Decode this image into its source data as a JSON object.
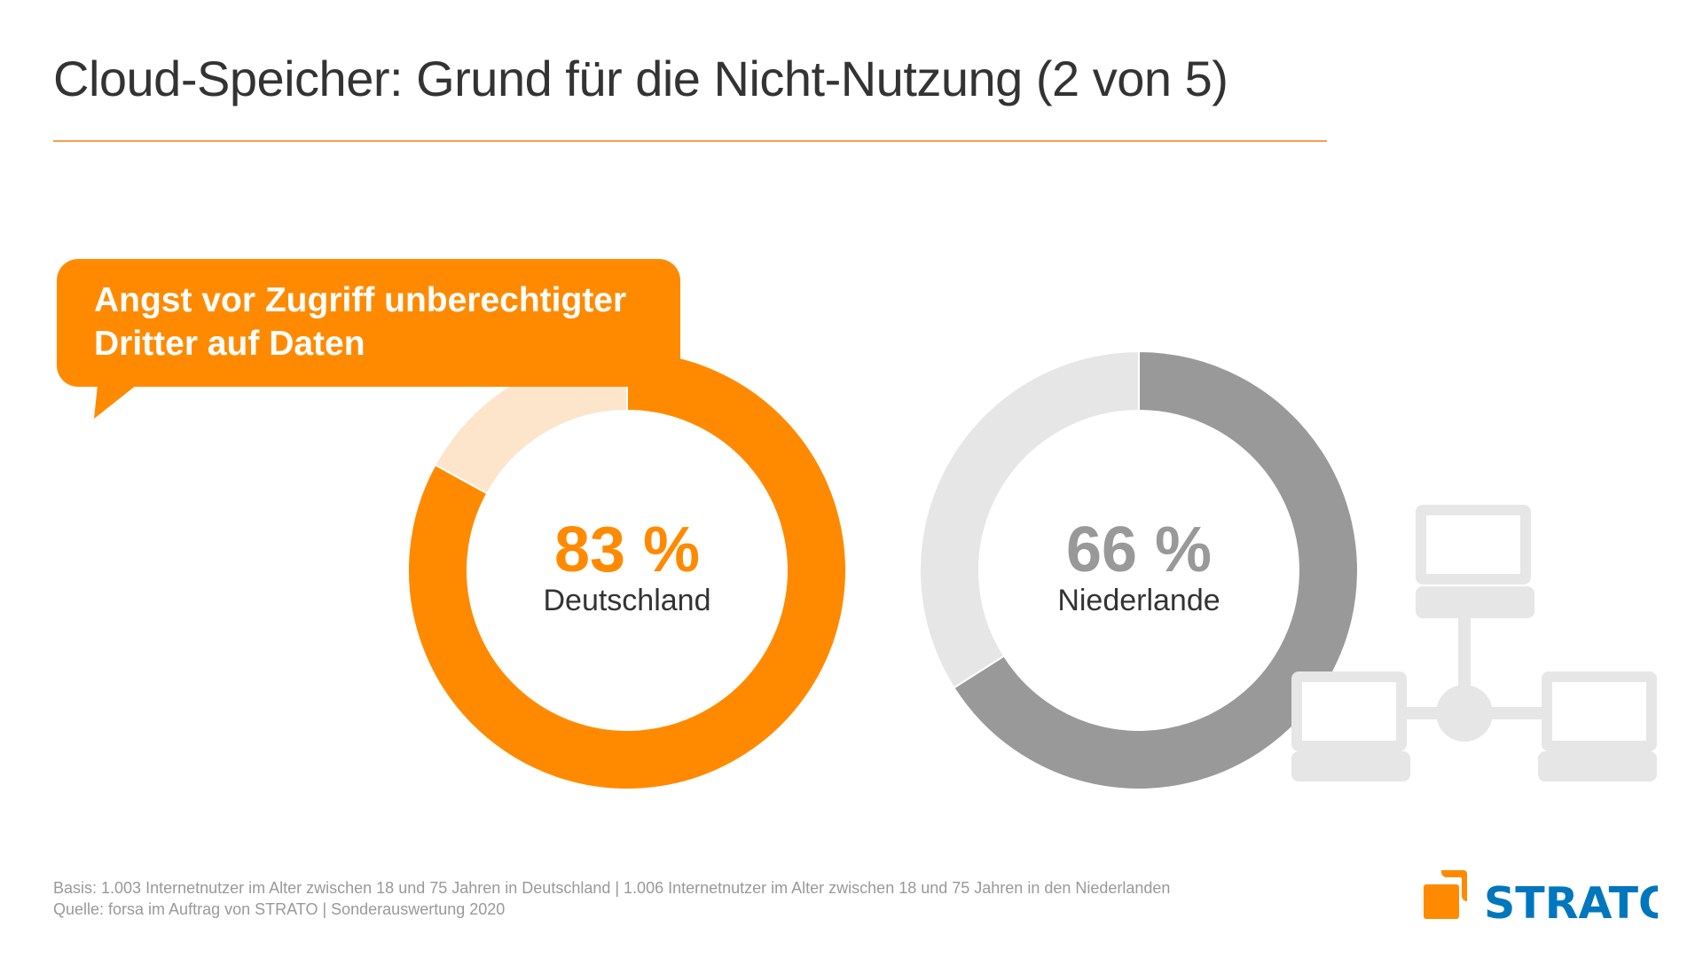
{
  "header": {
    "title": "Cloud-Speicher: Grund für die Nicht-Nutzung (2 von 5)"
  },
  "callout": {
    "text_line1": "Angst vor Zugriff unberechtigter",
    "text_line2": "Dritter auf Daten"
  },
  "colors": {
    "accent": "#ff8a00",
    "accent_light": "#fde5cc",
    "gray": "#999999",
    "gray_light": "#e6e6e6",
    "brand_blue": "#0077bd",
    "network_icon": "#e6e6e6"
  },
  "chart_data": [
    {
      "type": "pie",
      "variant": "donut",
      "name": "Deutschland",
      "label": "83 %",
      "values": [
        83,
        17
      ],
      "colors": [
        "#ff8a00",
        "#fde5cc"
      ]
    },
    {
      "type": "pie",
      "variant": "donut",
      "name": "Niederlande",
      "label": "66 %",
      "values": [
        66,
        34
      ],
      "colors": [
        "#999999",
        "#e6e6e6"
      ]
    }
  ],
  "footer": {
    "basis": "Basis: 1.003 Internetnutzer im Alter zwischen 18 und 75 Jahren in Deutschland | 1.006 Internetnutzer im Alter zwischen 18 und 75 Jahren in den Niederlanden",
    "source": "Quelle: forsa im Auftrag von STRATO | Sonderauswertung 2020"
  },
  "logo": {
    "text": "STRATO"
  },
  "icons": {
    "network": "network-computers-icon"
  }
}
